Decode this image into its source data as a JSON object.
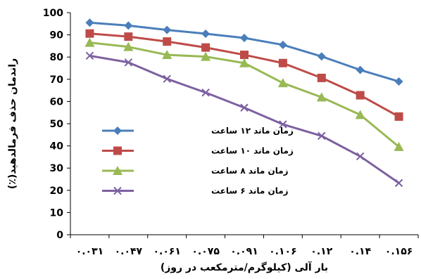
{
  "chart_data": {
    "type": "line",
    "title": "",
    "xlabel": "بار آلی (کیلوگرم/مترمکعب در روز)",
    "ylabel": "راندمان حذف فرمالدهید(٪)",
    "ylim": [
      0,
      100
    ],
    "yticks": [
      "0",
      "10",
      "20",
      "30",
      "40",
      "50",
      "60",
      "70",
      "80",
      "90",
      "100"
    ],
    "categories": [
      "۰.۰۳۱",
      "۰.۰۴۷",
      "۰.۰۶۱",
      "۰.۰۷۵",
      "۰.۰۹۱",
      "۰.۱۰۶",
      "۰.۱۲",
      "۰.۱۴",
      "۰.۱۵۶"
    ],
    "grid": false,
    "legend_position": "left",
    "series": [
      {
        "name": "زمان ماند ۱۲ ساعت",
        "marker": "diamond",
        "color": "#4a7ebb",
        "values": [
          95.5,
          94.2,
          92.2,
          90.5,
          88.6,
          85.5,
          80.3,
          74.2,
          69.0
        ]
      },
      {
        "name": "زمان ماند ۱۰ ساعت",
        "marker": "square",
        "color": "#be4b48",
        "values": [
          90.6,
          89.2,
          87.0,
          84.3,
          81.0,
          77.3,
          70.6,
          62.8,
          53.2
        ]
      },
      {
        "name": "زمان ماند ۸ ساعت",
        "marker": "triangle",
        "color": "#98b954",
        "values": [
          86.5,
          84.6,
          81.0,
          80.2,
          77.3,
          68.3,
          61.9,
          54.0,
          39.6
        ]
      },
      {
        "name": "زمان ماند ۶ ساعت",
        "marker": "x",
        "color": "#7d60a0",
        "values": [
          80.6,
          77.6,
          70.2,
          64.0,
          57.2,
          49.7,
          44.5,
          35.3,
          23.3
        ]
      }
    ]
  }
}
